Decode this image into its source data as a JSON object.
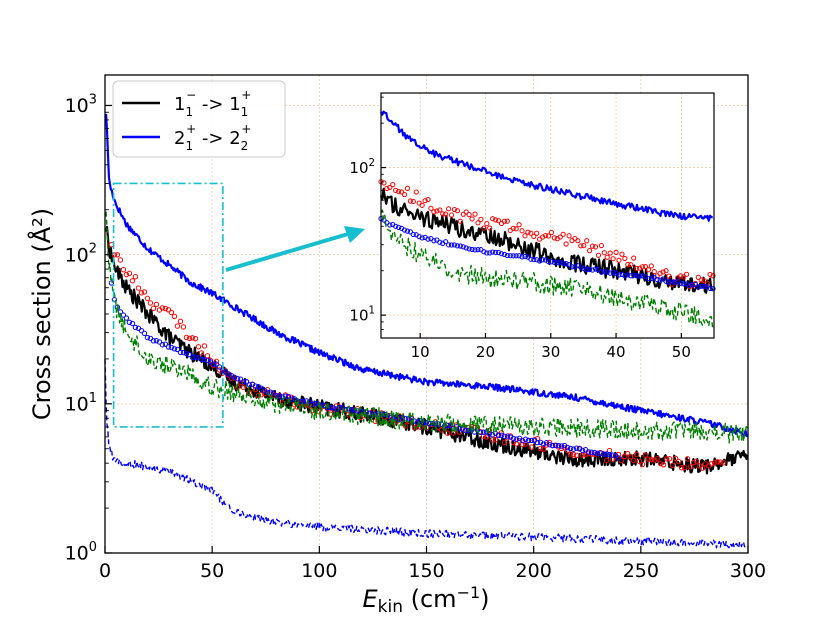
{
  "chart_data": [
    {
      "type": "line",
      "xlabel_main": "E",
      "xlabel_sub": "kin",
      "xlabel_unit_pre": " (cm",
      "xlabel_unit_sup": "−1",
      "xlabel_unit_post": ")",
      "ylabel": "Cross section (Å²)",
      "xlim": [
        0,
        300
      ],
      "ylim": [
        1,
        1600
      ],
      "yscale": "log",
      "grid": true,
      "x_ticks": [
        0,
        50,
        100,
        150,
        200,
        250,
        300
      ],
      "x_tick_labels": [
        "0",
        "50",
        "100",
        "150",
        "200",
        "250",
        "300"
      ],
      "y_tick_labels": [
        {
          "base": "10",
          "exp": "0"
        },
        {
          "base": "10",
          "exp": "1"
        },
        {
          "base": "10",
          "exp": "2"
        },
        {
          "base": "10",
          "exp": "3"
        }
      ],
      "legend": [
        {
          "main": "1",
          "sub": "1",
          "sup": "−",
          "mid": " -> ",
          "main2": "1",
          "sub2": "1",
          "sup2": "+",
          "color": "#000000"
        },
        {
          "main": "2",
          "sub": "1",
          "sup": "+",
          "mid": " -> ",
          "main2": "2",
          "sub2": "2",
          "sup2": "+",
          "color": "#0000ff"
        }
      ],
      "legend_position": "top-left",
      "highlight_box": {
        "x": [
          4,
          55
        ],
        "y": [
          7,
          300
        ],
        "color": "#17becf"
      },
      "series": [
        {
          "name": "2_1+ -> 2_2+ (solid)",
          "color": "#0000ff",
          "style": "solid",
          "noise": 0.05,
          "x": [
            0.5,
            2,
            5,
            10,
            20,
            30,
            40,
            50,
            60,
            80,
            100,
            120,
            150,
            180,
            200,
            220,
            250,
            280,
            300
          ],
          "y": [
            900,
            300,
            220,
            160,
            110,
            85,
            65,
            55,
            45,
            30,
            22,
            17,
            14,
            13,
            12,
            11,
            9,
            7.5,
            6.3
          ]
        },
        {
          "name": "1_1- -> 1_1+ (solid)",
          "color": "#000000",
          "style": "solid",
          "noise": 0.12,
          "x": [
            0.5,
            2,
            5,
            10,
            20,
            30,
            40,
            50,
            60,
            80,
            100,
            120,
            150,
            180,
            200,
            220,
            250,
            280,
            300
          ],
          "y": [
            150,
            110,
            80,
            60,
            40,
            28,
            22,
            18,
            14,
            11,
            9.5,
            8.5,
            7,
            5.5,
            4.8,
            4.2,
            4.3,
            3.8,
            4.5
          ]
        },
        {
          "name": "open red circles",
          "color": "#ff0000",
          "style": "circles",
          "noise": 0.08,
          "x": [
            3,
            5,
            10,
            15,
            20,
            30,
            40,
            50,
            60,
            80,
            100,
            120,
            150,
            180,
            200,
            220,
            240,
            260,
            290
          ],
          "y": [
            120,
            100,
            75,
            65,
            50,
            40,
            28,
            20,
            14,
            11,
            9.5,
            8.5,
            7.2,
            6.2,
            5.5,
            4.8,
            4.4,
            4.1,
            3.8
          ]
        },
        {
          "name": "open blue circles",
          "color": "#0000ff",
          "style": "circles",
          "noise": 0.02,
          "x": [
            3,
            5,
            10,
            15,
            20,
            30,
            40,
            50,
            60,
            80,
            100,
            120,
            150,
            180,
            200,
            220,
            240
          ],
          "y": [
            65,
            45,
            37,
            32,
            28,
            24,
            21,
            19,
            15,
            11.5,
            9.8,
            8.8,
            7.5,
            6.3,
            5.6,
            5.0,
            4.4
          ]
        },
        {
          "name": "green dashed",
          "color": "#008000",
          "style": "dashed",
          "noise": 0.15,
          "x": [
            0.5,
            2,
            5,
            10,
            15,
            20,
            30,
            40,
            50,
            60,
            80,
            100,
            150,
            200,
            250,
            300
          ],
          "y": [
            200,
            80,
            45,
            30,
            25,
            20,
            18,
            16,
            13,
            12,
            10,
            9,
            7.5,
            7,
            6.6,
            6.3
          ]
        },
        {
          "name": "blue dashed",
          "color": "#0000ff",
          "style": "dashed",
          "noise": 0.06,
          "x": [
            0,
            0.3,
            1,
            2,
            4,
            8,
            15,
            25,
            35,
            50,
            60,
            80,
            100,
            150,
            200,
            250,
            300
          ],
          "y": [
            20,
            12,
            7,
            5,
            4.3,
            4.0,
            3.9,
            3.6,
            3.3,
            2.6,
            1.9,
            1.6,
            1.5,
            1.35,
            1.28,
            1.2,
            1.13
          ]
        }
      ]
    },
    {
      "type": "line",
      "title": "inset",
      "xlim": [
        4,
        55
      ],
      "ylim": [
        7,
        320
      ],
      "yscale": "log",
      "grid": true,
      "x_ticks": [
        10,
        20,
        30,
        40,
        50
      ],
      "x_tick_labels": [
        "10",
        "20",
        "30",
        "40",
        "50"
      ],
      "y_tick_labels": [
        {
          "base": "10",
          "exp": "1"
        },
        {
          "base": "10",
          "exp": "2"
        }
      ],
      "series": [
        {
          "name": "2_1+ -> 2_2+ (solid)",
          "color": "#0000ff",
          "style": "solid",
          "noise": 0.05,
          "x": [
            4,
            5,
            8,
            12,
            18,
            25,
            32,
            40,
            48,
            55
          ],
          "y": [
            240,
            220,
            160,
            125,
            100,
            80,
            68,
            57,
            48,
            45
          ]
        },
        {
          "name": "1_1- -> 1_1+ (solid)",
          "color": "#000000",
          "style": "solid",
          "noise": 0.14,
          "x": [
            4,
            6,
            10,
            15,
            20,
            25,
            30,
            35,
            40,
            45,
            50,
            55
          ],
          "y": [
            65,
            55,
            45,
            40,
            35,
            30,
            25,
            22,
            20,
            18,
            16,
            16
          ]
        },
        {
          "name": "open red circles",
          "color": "#ff0000",
          "style": "circles",
          "noise": 0.1,
          "x": [
            4,
            6,
            10,
            15,
            20,
            25,
            30,
            35,
            40,
            45,
            50,
            55
          ],
          "y": [
            80,
            75,
            60,
            48,
            42,
            38,
            35,
            30,
            25,
            20,
            17,
            18
          ]
        },
        {
          "name": "open blue circles",
          "color": "#0000ff",
          "style": "circles",
          "noise": 0.02,
          "x": [
            4,
            6,
            10,
            15,
            20,
            25,
            30,
            35,
            40,
            45,
            50,
            55
          ],
          "y": [
            45,
            40,
            34,
            30,
            27,
            25,
            23,
            21,
            19,
            18,
            16.5,
            15
          ]
        },
        {
          "name": "green dashed",
          "color": "#008000",
          "style": "dashed",
          "noise": 0.16,
          "x": [
            4,
            6,
            10,
            15,
            20,
            25,
            30,
            35,
            40,
            45,
            50,
            55
          ],
          "y": [
            48,
            35,
            25,
            20,
            18,
            17,
            16,
            15,
            13,
            12,
            10.5,
            9
          ]
        }
      ]
    }
  ]
}
